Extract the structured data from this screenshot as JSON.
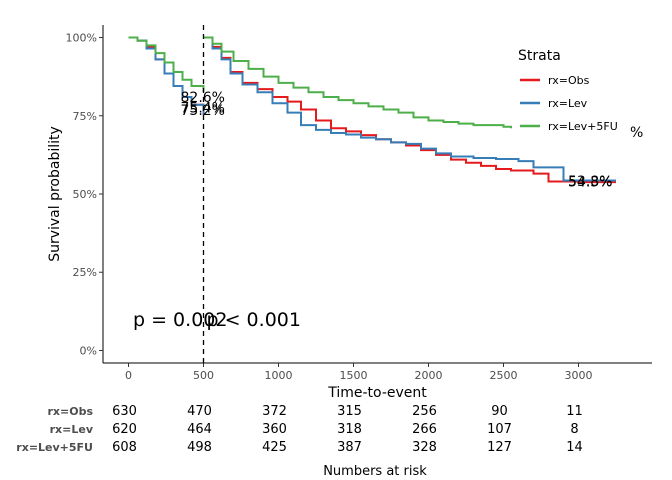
{
  "chart_data": {
    "type": "line",
    "subtype": "kaplan-meier",
    "xlabel": "Time-to-event",
    "ylabel": "Survival probability",
    "xlim": [
      -170,
      3490
    ],
    "ylim": [
      -0.04,
      1.04
    ],
    "xticks": [
      0,
      500,
      1000,
      1500,
      2000,
      2500,
      3000
    ],
    "yticks": [
      0,
      0.25,
      0.5,
      0.75,
      1.0
    ],
    "ytick_labels": [
      "0%",
      "25%",
      "50%",
      "75%",
      "100%"
    ],
    "grid": false,
    "legend": {
      "title": "Strata",
      "position": "top-right",
      "entries": [
        "rx=Obs",
        "rx=Lev",
        "rx=Lev+5FU"
      ],
      "extra_text": "%"
    },
    "vline": {
      "x": 500,
      "style": "dashed"
    },
    "annotations": [
      {
        "text": "82.6%",
        "x": 500,
        "y": 0.826
      },
      {
        "text": "75.4%",
        "x": 500,
        "y": 0.754
      },
      {
        "text": "75.2%",
        "x": 500,
        "y": 0.752
      },
      {
        "text": "53.8%",
        "x": 3250,
        "y": 0.538
      },
      {
        "text": "54.3%",
        "x": 3250,
        "y": 0.543
      }
    ],
    "pvalues": [
      {
        "text": "p = 0.002",
        "x": 30,
        "y": 0.1
      },
      {
        "text": "p < 0.001",
        "x": 520,
        "y": 0.1
      }
    ],
    "series": [
      {
        "name": "rx=Obs",
        "color": "#e41a1c",
        "points": [
          [
            0,
            1.0
          ],
          [
            60,
            0.99
          ],
          [
            120,
            0.97
          ],
          [
            180,
            0.93
          ],
          [
            240,
            0.885
          ],
          [
            300,
            0.845
          ],
          [
            360,
            0.81
          ],
          [
            420,
            0.785
          ],
          [
            500,
            0.752
          ],
          [
            500,
            1.0
          ],
          [
            560,
            0.97
          ],
          [
            620,
            0.935
          ],
          [
            680,
            0.89
          ],
          [
            760,
            0.855
          ],
          [
            860,
            0.835
          ],
          [
            960,
            0.81
          ],
          [
            1060,
            0.795
          ],
          [
            1150,
            0.77
          ],
          [
            1250,
            0.735
          ],
          [
            1350,
            0.71
          ],
          [
            1450,
            0.7
          ],
          [
            1550,
            0.688
          ],
          [
            1650,
            0.675
          ],
          [
            1750,
            0.665
          ],
          [
            1850,
            0.655
          ],
          [
            1950,
            0.64
          ],
          [
            2050,
            0.625
          ],
          [
            2150,
            0.61
          ],
          [
            2250,
            0.6
          ],
          [
            2350,
            0.59
          ],
          [
            2450,
            0.58
          ],
          [
            2550,
            0.575
          ],
          [
            2700,
            0.565
          ],
          [
            2800,
            0.54
          ],
          [
            3000,
            0.538
          ],
          [
            3250,
            0.538
          ]
        ]
      },
      {
        "name": "rx=Lev",
        "color": "#377eb8",
        "points": [
          [
            0,
            1.0
          ],
          [
            60,
            0.99
          ],
          [
            120,
            0.965
          ],
          [
            180,
            0.93
          ],
          [
            240,
            0.885
          ],
          [
            300,
            0.845
          ],
          [
            360,
            0.81
          ],
          [
            420,
            0.785
          ],
          [
            500,
            0.754
          ],
          [
            500,
            1.0
          ],
          [
            560,
            0.965
          ],
          [
            620,
            0.93
          ],
          [
            680,
            0.885
          ],
          [
            760,
            0.85
          ],
          [
            860,
            0.825
          ],
          [
            960,
            0.79
          ],
          [
            1060,
            0.76
          ],
          [
            1150,
            0.72
          ],
          [
            1250,
            0.705
          ],
          [
            1350,
            0.695
          ],
          [
            1450,
            0.69
          ],
          [
            1550,
            0.68
          ],
          [
            1650,
            0.675
          ],
          [
            1750,
            0.665
          ],
          [
            1850,
            0.66
          ],
          [
            1950,
            0.645
          ],
          [
            2050,
            0.63
          ],
          [
            2150,
            0.62
          ],
          [
            2300,
            0.615
          ],
          [
            2450,
            0.612
          ],
          [
            2600,
            0.605
          ],
          [
            2700,
            0.585
          ],
          [
            2900,
            0.543
          ],
          [
            3250,
            0.543
          ]
        ]
      },
      {
        "name": "rx=Lev+5FU",
        "color": "#4daf4a",
        "points": [
          [
            0,
            1.0
          ],
          [
            60,
            0.99
          ],
          [
            120,
            0.975
          ],
          [
            180,
            0.95
          ],
          [
            240,
            0.92
          ],
          [
            300,
            0.89
          ],
          [
            360,
            0.865
          ],
          [
            420,
            0.845
          ],
          [
            500,
            0.826
          ],
          [
            500,
            1.0
          ],
          [
            560,
            0.98
          ],
          [
            620,
            0.955
          ],
          [
            700,
            0.925
          ],
          [
            800,
            0.9
          ],
          [
            900,
            0.875
          ],
          [
            1000,
            0.855
          ],
          [
            1100,
            0.84
          ],
          [
            1200,
            0.825
          ],
          [
            1300,
            0.81
          ],
          [
            1400,
            0.8
          ],
          [
            1500,
            0.79
          ],
          [
            1600,
            0.78
          ],
          [
            1700,
            0.77
          ],
          [
            1800,
            0.76
          ],
          [
            1900,
            0.745
          ],
          [
            2000,
            0.735
          ],
          [
            2100,
            0.73
          ],
          [
            2200,
            0.725
          ],
          [
            2300,
            0.72
          ],
          [
            2400,
            0.72
          ],
          [
            2500,
            0.715
          ],
          [
            2550,
            0.71
          ]
        ]
      }
    ],
    "risk_table": {
      "title": "Numbers at risk",
      "times": [
        0,
        500,
        1000,
        1500,
        2000,
        2500,
        3000
      ],
      "rows": [
        {
          "name": "rx=Obs",
          "values": [
            "630",
            "470",
            "372",
            "315",
            "256",
            "90",
            "11"
          ]
        },
        {
          "name": "rx=Lev",
          "values": [
            "620",
            "464",
            "360",
            "318",
            "266",
            "107",
            "8"
          ]
        },
        {
          "name": "rx=Lev+5FU",
          "values": [
            "608",
            "498",
            "425",
            "387",
            "328",
            "127",
            "14"
          ]
        }
      ]
    }
  }
}
